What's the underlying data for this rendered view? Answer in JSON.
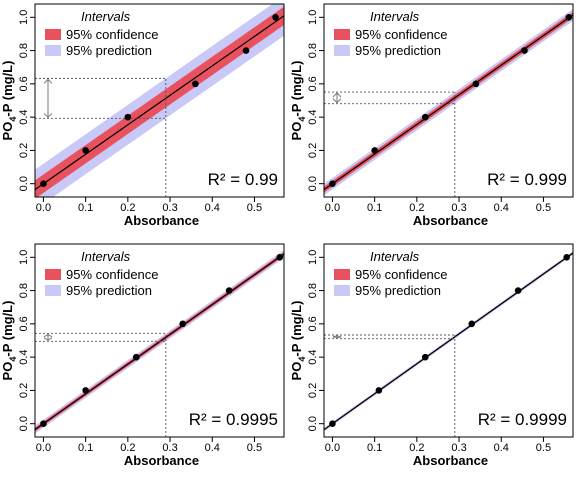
{
  "legend": {
    "title": "Intervals",
    "confidence_label": "95% confidence",
    "prediction_label": "95% prediction"
  },
  "colors": {
    "confidence": "#e8525e",
    "prediction": "#c9c9f7",
    "fit_line": "#000000",
    "points": "#000000",
    "guide_line": "#555555",
    "arrow": "#7a7a7a"
  },
  "chart_data": [
    {
      "type": "scatter",
      "title": "",
      "xlabel": "Absorbance",
      "ylabel_main": "PO",
      "ylabel_sub": "4",
      "ylabel_rest": "-P (mg/L)",
      "xlim": [
        -0.02,
        0.57
      ],
      "ylim": [
        -0.08,
        1.08
      ],
      "xticks": [
        "0.0",
        "0.1",
        "0.2",
        "0.3",
        "0.4",
        "0.5"
      ],
      "yticks": [
        "0.0",
        "0.2",
        "0.4",
        "0.6",
        "0.8",
        "1.0"
      ],
      "x": [
        0.0,
        0.1,
        0.2,
        0.36,
        0.48,
        0.55
      ],
      "y": [
        0.0,
        0.2,
        0.4,
        0.6,
        0.8,
        1.0
      ],
      "fit": {
        "slope": 1.77,
        "intercept": 0.0
      },
      "confidence_halfwidth": 0.055,
      "prediction_halfwidth": 0.12,
      "unknown_absorbance": 0.29,
      "predicted_range": [
        0.393,
        0.633
      ],
      "r2": "R² = 0.99"
    },
    {
      "type": "scatter",
      "title": "",
      "xlabel": "Absorbance",
      "ylabel_main": "PO",
      "ylabel_sub": "4",
      "ylabel_rest": "-P (mg/L)",
      "xlim": [
        -0.02,
        0.57
      ],
      "ylim": [
        -0.08,
        1.08
      ],
      "xticks": [
        "0.0",
        "0.1",
        "0.2",
        "0.3",
        "0.4",
        "0.5"
      ],
      "yticks": [
        "0.0",
        "0.2",
        "0.4",
        "0.6",
        "0.8",
        "1.0"
      ],
      "x": [
        0.0,
        0.1,
        0.22,
        0.34,
        0.455,
        0.56
      ],
      "y": [
        0.0,
        0.2,
        0.4,
        0.6,
        0.8,
        1.0
      ],
      "fit": {
        "slope": 1.78,
        "intercept": 0.0
      },
      "confidence_halfwidth": 0.018,
      "prediction_halfwidth": 0.035,
      "unknown_absorbance": 0.29,
      "predicted_range": [
        0.481,
        0.551
      ],
      "r2": "R² = 0.999"
    },
    {
      "type": "scatter",
      "title": "",
      "xlabel": "Absorbance",
      "ylabel_main": "PO",
      "ylabel_sub": "4",
      "ylabel_rest": "-P (mg/L)",
      "xlim": [
        -0.02,
        0.57
      ],
      "ylim": [
        -0.08,
        1.08
      ],
      "xticks": [
        "0.0",
        "0.1",
        "0.2",
        "0.3",
        "0.4",
        "0.5"
      ],
      "yticks": [
        "0.0",
        "0.2",
        "0.4",
        "0.6",
        "0.8",
        "1.0"
      ],
      "x": [
        0.0,
        0.1,
        0.22,
        0.33,
        0.44,
        0.56
      ],
      "y": [
        0.0,
        0.2,
        0.4,
        0.6,
        0.8,
        1.0
      ],
      "fit": {
        "slope": 1.79,
        "intercept": 0.0
      },
      "confidence_halfwidth": 0.012,
      "prediction_halfwidth": 0.024,
      "unknown_absorbance": 0.29,
      "predicted_range": [
        0.495,
        0.543
      ],
      "r2": "R² = 0.9995"
    },
    {
      "type": "scatter",
      "title": "",
      "xlabel": "Absorbance",
      "ylabel_main": "PO",
      "ylabel_sub": "4",
      "ylabel_rest": "-P (mg/L)",
      "xlim": [
        -0.02,
        0.57
      ],
      "ylim": [
        -0.08,
        1.08
      ],
      "xticks": [
        "0.0",
        "0.1",
        "0.2",
        "0.3",
        "0.4",
        "0.5"
      ],
      "yticks": [
        "0.0",
        "0.2",
        "0.4",
        "0.6",
        "0.8",
        "1.0"
      ],
      "x": [
        0.0,
        0.11,
        0.22,
        0.33,
        0.44,
        0.555
      ],
      "y": [
        0.0,
        0.2,
        0.4,
        0.6,
        0.8,
        1.0
      ],
      "fit": {
        "slope": 1.8,
        "intercept": 0.0
      },
      "confidence_halfwidth": 0.005,
      "prediction_halfwidth": 0.011,
      "unknown_absorbance": 0.29,
      "predicted_range": [
        0.511,
        0.533
      ],
      "r2": "R² = 0.9999"
    }
  ]
}
